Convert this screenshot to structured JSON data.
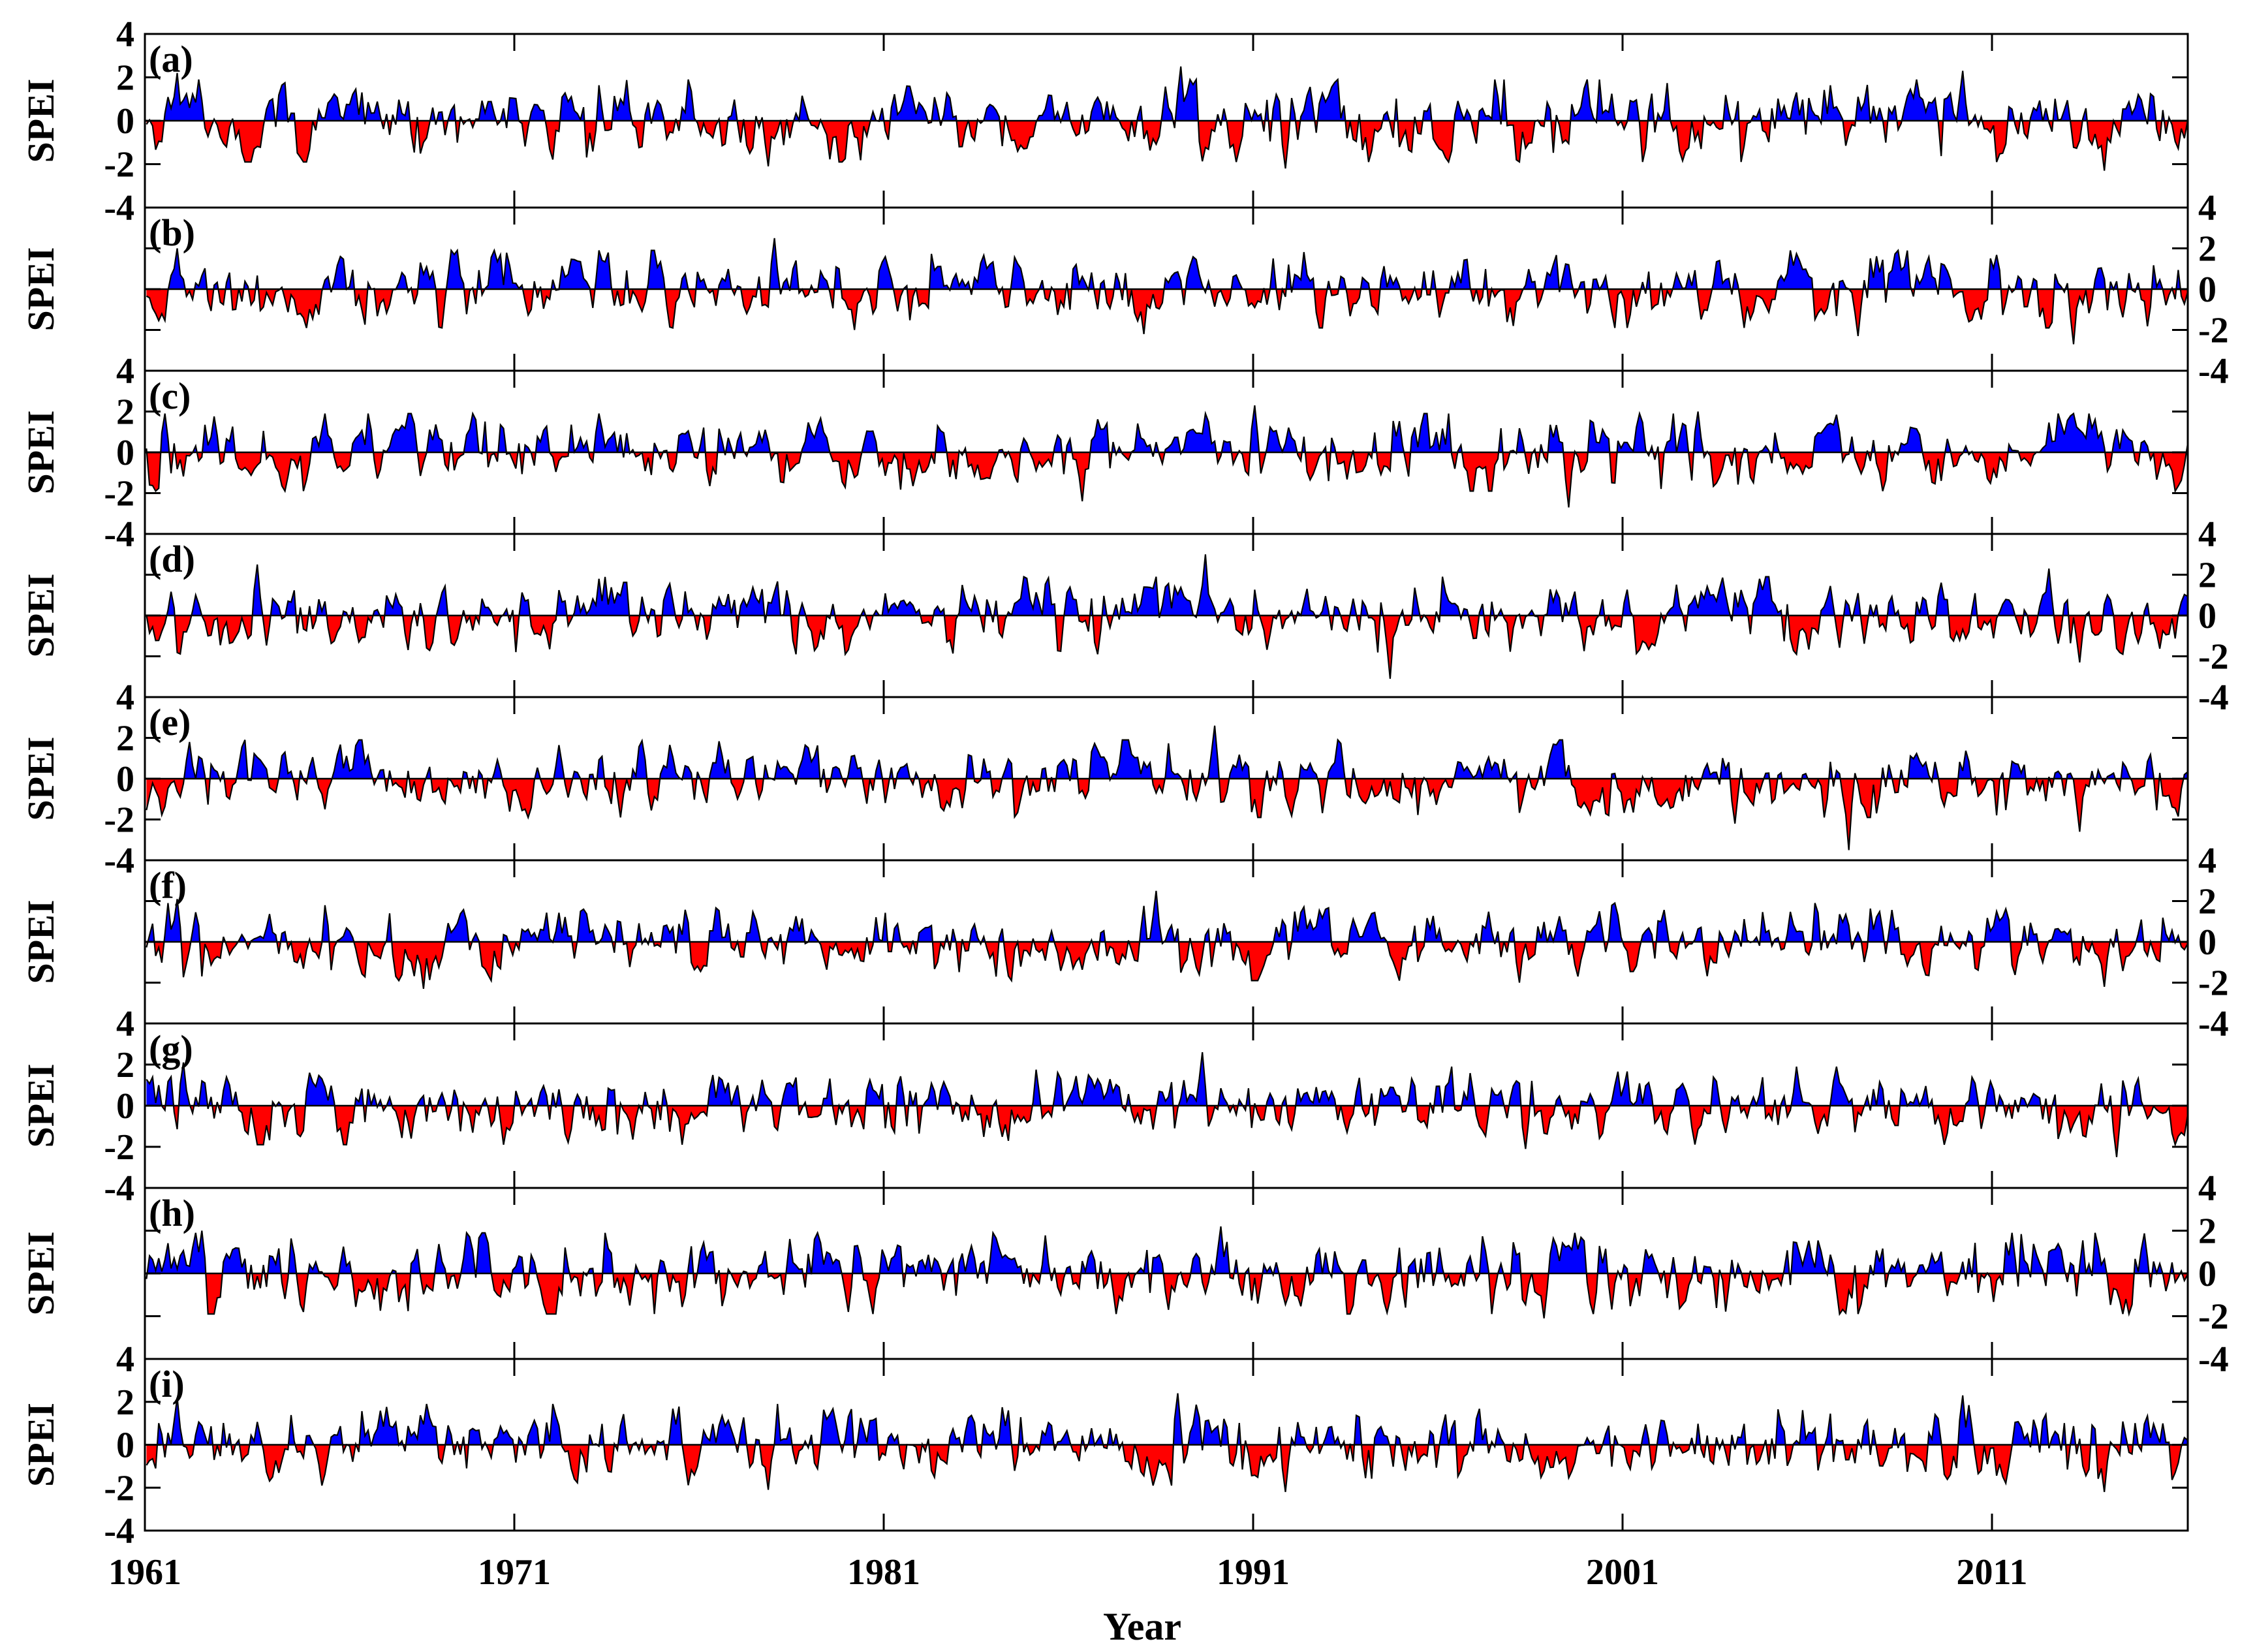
{
  "chart_data": {
    "type": "area",
    "xlabel": "Year",
    "ylabel": "SPEI",
    "xlim": [
      1961,
      2016.3
    ],
    "ylim": [
      -4,
      4
    ],
    "x_ticks": [
      1961,
      1971,
      1981,
      1991,
      2001,
      2011
    ],
    "x_tick_labels": [
      "1961",
      "1971",
      "1981",
      "1991",
      "2001",
      "2011"
    ],
    "y_ticks": [
      4,
      2,
      0,
      -2,
      -4
    ],
    "y_tick_labels": [
      "4",
      "2",
      "0",
      "-2",
      "-4"
    ],
    "positive_color": "#0000ff",
    "negative_color": "#ff0000",
    "line_color": "#000000",
    "grid": false,
    "legend": "none",
    "series_time_step": "monthly",
    "panels": [
      {
        "label": "(a)",
        "y_axis_side": "left",
        "extremes": [
          {
            "x": 1961.8,
            "y": 2.2
          },
          {
            "x": 1977.8,
            "y": -2.1
          },
          {
            "x": 1989.0,
            "y": 2.5
          },
          {
            "x": 1991.8,
            "y": -2.2
          },
          {
            "x": 2010.2,
            "y": 2.3
          },
          {
            "x": 2014.0,
            "y": -2.3
          }
        ]
      },
      {
        "label": "(b)",
        "y_axis_side": "right",
        "extremes": [
          {
            "x": 1961.8,
            "y": 2.0
          },
          {
            "x": 1978.0,
            "y": 2.5
          },
          {
            "x": 1980.2,
            "y": -2.0
          },
          {
            "x": 1988.0,
            "y": -2.2
          },
          {
            "x": 1998.0,
            "y": -1.8
          },
          {
            "x": 2007.3,
            "y": -2.3
          },
          {
            "x": 2013.2,
            "y": -2.7
          }
        ]
      },
      {
        "label": "(c)",
        "y_axis_side": "left",
        "extremes": [
          {
            "x": 1961.5,
            "y": 1.9
          },
          {
            "x": 1986.3,
            "y": -2.4
          },
          {
            "x": 1991.0,
            "y": 2.3
          },
          {
            "x": 1999.5,
            "y": -2.7
          },
          {
            "x": 2003.0,
            "y": 2.0
          }
        ]
      },
      {
        "label": "(d)",
        "y_axis_side": "right",
        "extremes": [
          {
            "x": 1964.0,
            "y": 2.5
          },
          {
            "x": 1989.7,
            "y": 3.0
          },
          {
            "x": 1994.7,
            "y": -3.1
          },
          {
            "x": 2012.5,
            "y": 2.3
          },
          {
            "x": 2013.3,
            "y": -2.3
          }
        ]
      },
      {
        "label": "(e)",
        "y_axis_side": "left",
        "extremes": [
          {
            "x": 1962.2,
            "y": 1.8
          },
          {
            "x": 1965.8,
            "y": -1.5
          },
          {
            "x": 1989.9,
            "y": 2.6
          },
          {
            "x": 2004.0,
            "y": -2.2
          },
          {
            "x": 2007.1,
            "y": -3.5
          },
          {
            "x": 2013.3,
            "y": -2.6
          }
        ]
      },
      {
        "label": "(f)",
        "y_axis_side": "right",
        "extremes": [
          {
            "x": 1961.8,
            "y": 2.1
          },
          {
            "x": 1968.5,
            "y": -2.3
          },
          {
            "x": 1988.3,
            "y": 2.5
          },
          {
            "x": 1998.2,
            "y": -2.0
          },
          {
            "x": 2014.0,
            "y": -2.2
          }
        ]
      },
      {
        "label": "(g)",
        "y_axis_side": "left",
        "extremes": [
          {
            "x": 1962.0,
            "y": 2.1
          },
          {
            "x": 1968.2,
            "y": -1.6
          },
          {
            "x": 1989.6,
            "y": 2.6
          },
          {
            "x": 1998.3,
            "y": -2.1
          },
          {
            "x": 2014.3,
            "y": -2.5
          }
        ]
      },
      {
        "label": "(h)",
        "y_axis_side": "right",
        "extremes": [
          {
            "x": 1962.5,
            "y": 2.0
          },
          {
            "x": 1980.0,
            "y": -1.8
          },
          {
            "x": 1988.7,
            "y": -1.7
          },
          {
            "x": 1990.1,
            "y": 2.2
          },
          {
            "x": 1998.8,
            "y": -2.1
          }
        ]
      },
      {
        "label": "(i)",
        "y_axis_side": "left",
        "extremes": [
          {
            "x": 1961.8,
            "y": 2.2
          },
          {
            "x": 1977.8,
            "y": -2.1
          },
          {
            "x": 1988.9,
            "y": 2.4
          },
          {
            "x": 1991.8,
            "y": -2.2
          },
          {
            "x": 2010.2,
            "y": 2.3
          },
          {
            "x": 2014.0,
            "y": -2.2
          }
        ]
      }
    ]
  }
}
